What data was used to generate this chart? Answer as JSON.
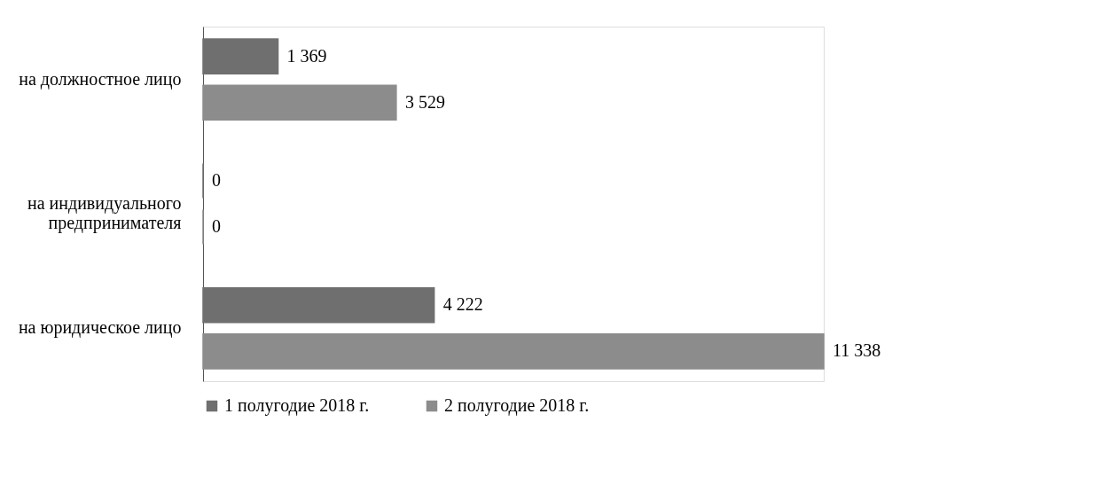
{
  "chart_data": {
    "type": "bar",
    "orientation": "horizontal",
    "categories": [
      "на должностное лицо",
      "на индивидуального\nпредпринимателя",
      "на юридическое лицо"
    ],
    "series": [
      {
        "name": "1 полугодие 2018 г.",
        "color": "#6f6f6f",
        "values": [
          1369,
          0,
          4222
        ],
        "value_labels": [
          "1 369",
          "0",
          "4 222"
        ]
      },
      {
        "name": "2 полугодие 2018 г.",
        "color": "#8c8c8c",
        "values": [
          3529,
          0,
          11338
        ],
        "value_labels": [
          "3 529",
          "0",
          "11 338"
        ]
      }
    ],
    "legend": "bottom"
  }
}
